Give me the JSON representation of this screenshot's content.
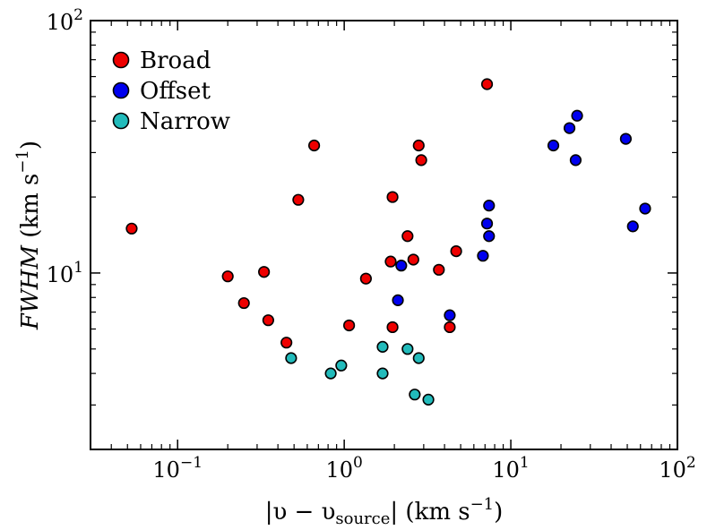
{
  "chart_data": {
    "type": "scatter",
    "x_scale": "log",
    "y_scale": "log",
    "xlim": [
      0.03,
      100
    ],
    "ylim": [
      2,
      100
    ],
    "xlabel": {
      "prefix": "|υ − υ",
      "sub": "source",
      "suffix": "| (km s",
      "sup": "−1",
      "end": ")"
    },
    "ylabel": {
      "italic": "FWHM",
      "rest": " (km s",
      "sup": "−1",
      "end": ")"
    },
    "x_ticks": [
      {
        "value": 0.1,
        "base": "10",
        "exp": "−1"
      },
      {
        "value": 1,
        "base": "10",
        "exp": "0"
      },
      {
        "value": 10,
        "base": "10",
        "exp": "1"
      },
      {
        "value": 100,
        "base": "10",
        "exp": "2"
      }
    ],
    "y_ticks": [
      {
        "value": 10,
        "base": "10",
        "exp": "1"
      },
      {
        "value": 100,
        "base": "10",
        "exp": "2"
      }
    ],
    "legend_position": "top-left",
    "grid": false,
    "series": [
      {
        "name": "Broad",
        "color": "#ee0000",
        "points": [
          [
            0.053,
            15.0
          ],
          [
            0.2,
            9.7
          ],
          [
            0.25,
            7.6
          ],
          [
            0.33,
            10.1
          ],
          [
            0.35,
            6.5
          ],
          [
            0.45,
            5.3
          ],
          [
            0.53,
            19.5
          ],
          [
            0.66,
            32
          ],
          [
            1.07,
            6.2
          ],
          [
            1.35,
            9.5
          ],
          [
            1.9,
            11.1
          ],
          [
            1.95,
            20
          ],
          [
            1.95,
            6.1
          ],
          [
            2.4,
            14
          ],
          [
            2.6,
            11.3
          ],
          [
            2.8,
            32
          ],
          [
            2.9,
            28
          ],
          [
            3.7,
            10.3
          ],
          [
            4.3,
            6.1
          ],
          [
            4.7,
            12.2
          ],
          [
            7.2,
            56
          ]
        ]
      },
      {
        "name": "Offset",
        "color": "#0000ee",
        "points": [
          [
            2.1,
            7.8
          ],
          [
            2.2,
            10.7
          ],
          [
            4.3,
            6.8
          ],
          [
            6.8,
            11.7
          ],
          [
            7.2,
            15.7
          ],
          [
            7.4,
            18.5
          ],
          [
            7.4,
            14
          ],
          [
            18,
            32
          ],
          [
            22.5,
            37.5
          ],
          [
            24.5,
            28
          ],
          [
            25,
            42
          ],
          [
            49,
            34
          ],
          [
            54,
            15.3
          ],
          [
            64,
            18
          ]
        ]
      },
      {
        "name": "Narrow",
        "color": "#22bbbb",
        "points": [
          [
            0.48,
            4.6
          ],
          [
            0.83,
            4.0
          ],
          [
            0.96,
            4.3
          ],
          [
            1.7,
            5.1
          ],
          [
            1.7,
            4.0
          ],
          [
            2.4,
            5.0
          ],
          [
            2.65,
            3.3
          ],
          [
            2.8,
            4.6
          ],
          [
            3.2,
            3.15
          ]
        ]
      }
    ]
  }
}
